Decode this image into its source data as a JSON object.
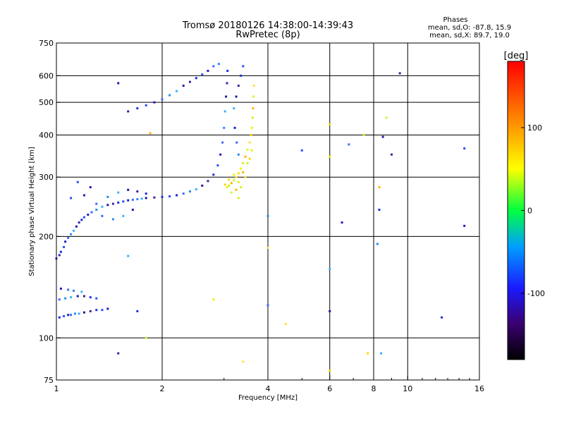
{
  "header": {
    "title": "Tromsø 20180126 14:38:00-14:39:43",
    "subtitle": "RwPretec (8p)"
  },
  "stats": {
    "heading": "Phases",
    "line_o": "mean, sd,O: -87.8, 15.9",
    "line_x": "mean, sd,X: 89.7, 19.0"
  },
  "chart_data": {
    "type": "scatter",
    "title": "Tromsø 20180126 14:38:00-14:39:43",
    "subtitle": "RwPretec (8p)",
    "xlabel": "Frequency [MHz]",
    "ylabel": "Stationary phase Virtual Height [km]",
    "x_scale": "log",
    "y_scale": "log",
    "xlim": [
      1,
      16
    ],
    "ylim": [
      75,
      750
    ],
    "x_ticks": [
      1,
      2,
      4,
      6,
      8,
      10,
      16
    ],
    "y_ticks": [
      75,
      100,
      200,
      300,
      400,
      500,
      600,
      750
    ],
    "grid": true,
    "grid_x": [
      2,
      4,
      6,
      8,
      10
    ],
    "grid_y": [
      100,
      200,
      300,
      400,
      500,
      600
    ],
    "colorbar": {
      "label": "[deg]",
      "range": [
        -180,
        180
      ],
      "ticks": [
        100,
        0,
        -100
      ]
    },
    "series": [
      {
        "points": [
          [
            1.02,
            115
          ],
          [
            1.05,
            116
          ],
          [
            1.08,
            117
          ],
          [
            1.1,
            117
          ],
          [
            1.13,
            118
          ],
          [
            1.16,
            118
          ],
          [
            1.2,
            119
          ],
          [
            1.25,
            120
          ],
          [
            1.3,
            121
          ],
          [
            1.35,
            121
          ],
          [
            1.4,
            122
          ],
          [
            1.02,
            130
          ],
          [
            1.06,
            131
          ],
          [
            1.1,
            132
          ],
          [
            1.15,
            133
          ],
          [
            1.2,
            133
          ],
          [
            1.25,
            132
          ],
          [
            1.3,
            131
          ],
          [
            1.03,
            140
          ],
          [
            1.08,
            139
          ],
          [
            1.12,
            138
          ],
          [
            1.18,
            137
          ],
          [
            1.0,
            172
          ],
          [
            1.02,
            176
          ],
          [
            1.03,
            180
          ],
          [
            1.05,
            186
          ],
          [
            1.06,
            193
          ],
          [
            1.08,
            198
          ],
          [
            1.1,
            203
          ],
          [
            1.12,
            208
          ],
          [
            1.14,
            214
          ],
          [
            1.16,
            220
          ],
          [
            1.18,
            224
          ],
          [
            1.2,
            228
          ],
          [
            1.23,
            232
          ],
          [
            1.26,
            236
          ],
          [
            1.3,
            240
          ],
          [
            1.35,
            245
          ],
          [
            1.4,
            248
          ],
          [
            1.45,
            250
          ],
          [
            1.5,
            252
          ],
          [
            1.55,
            254
          ],
          [
            1.6,
            256
          ],
          [
            1.65,
            257
          ],
          [
            1.7,
            258
          ],
          [
            1.75,
            259
          ],
          [
            1.8,
            260
          ],
          [
            1.9,
            261
          ],
          [
            2.0,
            262
          ],
          [
            2.1,
            263
          ],
          [
            2.2,
            265
          ],
          [
            2.3,
            268
          ],
          [
            2.4,
            272
          ],
          [
            2.5,
            276
          ],
          [
            2.6,
            283
          ],
          [
            2.7,
            292
          ],
          [
            2.8,
            305
          ],
          [
            2.88,
            325
          ],
          [
            2.93,
            350
          ],
          [
            2.97,
            380
          ],
          [
            3.0,
            420
          ],
          [
            3.02,
            470
          ],
          [
            3.04,
            520
          ],
          [
            3.06,
            570
          ],
          [
            3.07,
            620
          ],
          [
            1.1,
            260
          ],
          [
            1.2,
            265
          ],
          [
            1.3,
            250
          ],
          [
            1.4,
            262
          ],
          [
            1.5,
            270
          ],
          [
            1.6,
            275
          ],
          [
            1.7,
            272
          ],
          [
            1.8,
            268
          ],
          [
            1.15,
            290
          ],
          [
            1.25,
            280
          ],
          [
            1.35,
            230
          ],
          [
            1.45,
            225
          ],
          [
            1.55,
            230
          ],
          [
            1.65,
            240
          ],
          [
            1.6,
            470
          ],
          [
            1.7,
            480
          ],
          [
            1.8,
            490
          ],
          [
            1.9,
            500
          ],
          [
            2.0,
            510
          ],
          [
            2.1,
            525
          ],
          [
            2.2,
            540
          ],
          [
            2.3,
            560
          ],
          [
            2.4,
            575
          ],
          [
            2.5,
            590
          ],
          [
            2.6,
            605
          ],
          [
            2.7,
            620
          ],
          [
            2.8,
            640
          ],
          [
            2.9,
            650
          ],
          [
            3.2,
            480
          ],
          [
            3.25,
            520
          ],
          [
            3.3,
            560
          ],
          [
            3.35,
            600
          ],
          [
            3.4,
            640
          ],
          [
            3.22,
            420
          ],
          [
            3.26,
            380
          ],
          [
            3.3,
            350
          ],
          [
            1.6,
            175
          ],
          [
            1.5,
            570
          ],
          [
            1.5,
            90
          ],
          [
            1.7,
            120
          ],
          [
            5.0,
            360
          ],
          [
            6.5,
            220
          ],
          [
            6.8,
            375
          ],
          [
            8.2,
            190
          ],
          [
            8.4,
            90
          ],
          [
            8.5,
            395
          ],
          [
            9.0,
            350
          ],
          [
            12.5,
            115
          ],
          [
            14.5,
            365
          ],
          [
            14.5,
            215
          ],
          [
            4.0,
            125
          ],
          [
            4.0,
            230
          ],
          [
            6.0,
            160
          ],
          [
            6.0,
            120
          ],
          [
            9.5,
            610
          ],
          [
            8.3,
            240
          ]
        ]
      },
      {
        "points": [
          [
            3.02,
            285
          ],
          [
            3.06,
            280
          ],
          [
            3.1,
            283
          ],
          [
            3.15,
            288
          ],
          [
            3.2,
            294
          ],
          [
            3.25,
            300
          ],
          [
            3.3,
            308
          ],
          [
            3.35,
            318
          ],
          [
            3.4,
            330
          ],
          [
            3.45,
            345
          ],
          [
            3.5,
            362
          ],
          [
            3.55,
            380
          ],
          [
            3.58,
            400
          ],
          [
            3.6,
            420
          ],
          [
            3.62,
            450
          ],
          [
            3.63,
            480
          ],
          [
            3.64,
            520
          ],
          [
            3.65,
            560
          ],
          [
            3.1,
            295
          ],
          [
            3.2,
            305
          ],
          [
            3.3,
            290
          ],
          [
            3.4,
            310
          ],
          [
            3.5,
            330
          ],
          [
            3.45,
            300
          ],
          [
            3.55,
            340
          ],
          [
            3.6,
            360
          ],
          [
            3.35,
            280
          ],
          [
            3.25,
            275
          ],
          [
            3.15,
            270
          ],
          [
            4.0,
            185
          ],
          [
            6.0,
            430
          ],
          [
            6.0,
            345
          ],
          [
            7.5,
            400
          ],
          [
            8.3,
            280
          ],
          [
            8.7,
            450
          ],
          [
            4.5,
            110
          ],
          [
            6.0,
            80
          ],
          [
            2.8,
            130
          ],
          [
            3.3,
            260
          ],
          [
            1.85,
            405
          ],
          [
            1.8,
            100
          ],
          [
            3.4,
            85
          ],
          [
            7.7,
            90
          ]
        ]
      }
    ]
  }
}
